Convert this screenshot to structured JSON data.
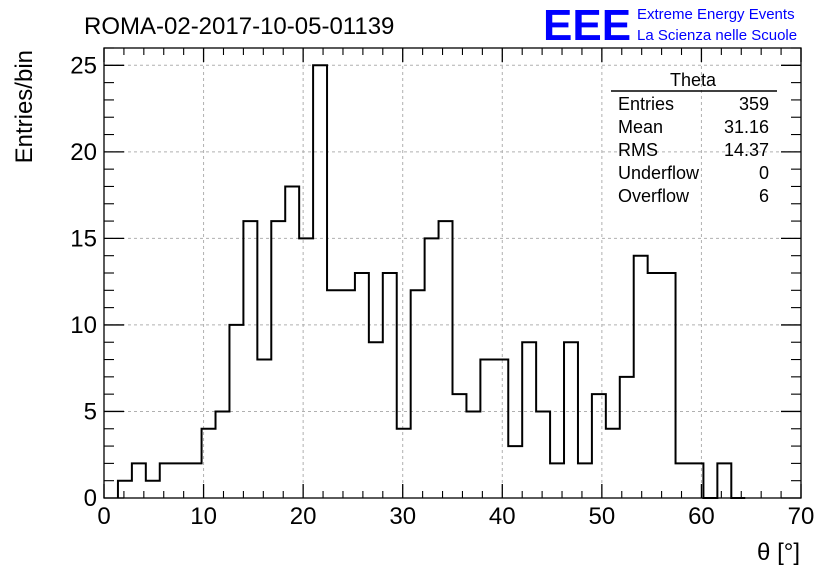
{
  "chart_data": {
    "type": "histogram",
    "title": "ROMA-02-2017-10-05-01139",
    "xlabel": "θ [°]",
    "ylabel": "Entries/bin",
    "xlim": [
      0,
      70
    ],
    "ylim": [
      0,
      26
    ],
    "xticks": [
      0,
      10,
      20,
      30,
      40,
      50,
      60,
      70
    ],
    "yticks": [
      0,
      5,
      10,
      15,
      20,
      25
    ],
    "grid": true,
    "bin_width": 1.4,
    "bin_start": 1.4,
    "values": [
      1,
      2,
      1,
      2,
      2,
      2,
      4,
      5,
      10,
      16,
      8,
      16,
      18,
      15,
      25,
      12,
      12,
      13,
      9,
      13,
      4,
      12,
      15,
      16,
      6,
      5,
      8,
      8,
      3,
      9,
      5,
      2,
      9,
      2,
      6,
      4,
      7,
      14,
      13,
      13,
      2,
      2,
      0,
      2,
      0
    ],
    "stats": {
      "title": "Theta",
      "rows": [
        {
          "label": "Entries",
          "value": "359"
        },
        {
          "label": "Mean",
          "value": "31.16"
        },
        {
          "label": "RMS",
          "value": "14.37"
        },
        {
          "label": "Underflow",
          "value": "0"
        },
        {
          "label": "Overflow",
          "value": "6"
        }
      ]
    }
  },
  "branding": {
    "logo": "EEE",
    "line1": "Extreme Energy Events",
    "line2": "La Scienza nelle Scuole",
    "color": "#0000ff"
  },
  "colors": {
    "histogram_line": "#000000",
    "grid": "#b0b0b0",
    "frame": "#000000"
  }
}
